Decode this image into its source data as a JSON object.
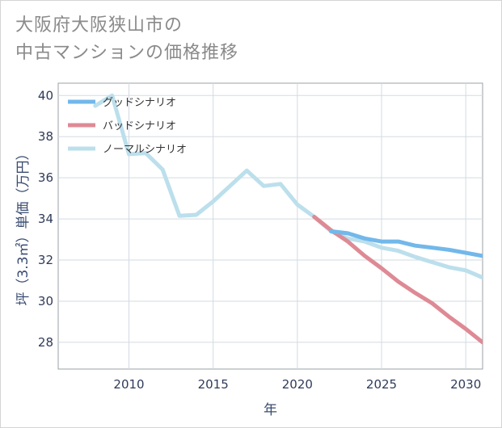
{
  "title_lines": [
    "大阪府大阪狭山市の",
    "中古マンションの価格推移"
  ],
  "chart_data": {
    "type": "line",
    "title": "大阪府大阪狭山市の中古マンションの価格推移",
    "xlabel": "年",
    "ylabel": "坪（3.3㎡）単価（万円）",
    "xlim": [
      2005.8,
      2031
    ],
    "ylim": [
      26.7,
      40.6
    ],
    "x_ticks": [
      2010,
      2015,
      2020,
      2025,
      2030
    ],
    "y_ticks": [
      28,
      30,
      32,
      34,
      36,
      38,
      40
    ],
    "grid": true,
    "legend_position": "top-left",
    "series": [
      {
        "name": "グッドシナリオ",
        "color": "#72b8ea",
        "x": [
          2022,
          2023,
          2024,
          2025,
          2026,
          2027,
          2028,
          2029,
          2030,
          2031
        ],
        "values": [
          33.4,
          33.3,
          33.05,
          32.9,
          32.9,
          32.7,
          32.6,
          32.5,
          32.35,
          32.2
        ]
      },
      {
        "name": "バッドシナリオ",
        "color": "#de8a95",
        "x": [
          2021,
          2022,
          2023,
          2024,
          2025,
          2026,
          2027,
          2028,
          2029,
          2030,
          2031
        ],
        "values": [
          34.1,
          33.45,
          32.9,
          32.2,
          31.6,
          30.95,
          30.4,
          29.9,
          29.25,
          28.65,
          28.0
        ]
      },
      {
        "name": "ノーマルシナリオ",
        "color": "#bcdfec",
        "x": [
          2008,
          2009,
          2010,
          2011,
          2012,
          2013,
          2014,
          2015,
          2016,
          2017,
          2018,
          2019,
          2020,
          2021,
          2022,
          2023,
          2024,
          2025,
          2026,
          2027,
          2028,
          2029,
          2030,
          2031
        ],
        "values": [
          39.5,
          40.0,
          37.15,
          37.2,
          36.4,
          34.15,
          34.2,
          34.85,
          35.6,
          36.35,
          35.6,
          35.7,
          34.7,
          34.1,
          33.4,
          33.05,
          32.9,
          32.6,
          32.45,
          32.15,
          31.9,
          31.65,
          31.5,
          31.15
        ]
      }
    ]
  }
}
